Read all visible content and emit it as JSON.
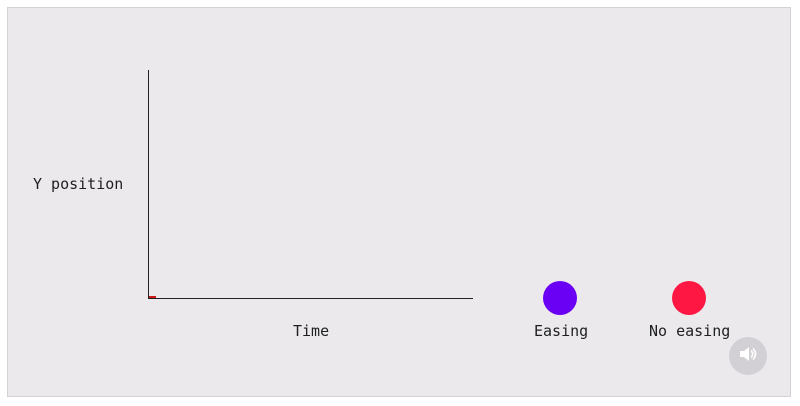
{
  "graph": {
    "y_axis_label": "Y position",
    "x_axis_label": "Time"
  },
  "balls": [
    {
      "label": "Easing",
      "color": "#6a00f4"
    },
    {
      "label": "No easing",
      "color": "#ff1744"
    }
  ],
  "trace_color": "#cc1a1a",
  "controls": {
    "sound_icon": "speaker-icon"
  }
}
